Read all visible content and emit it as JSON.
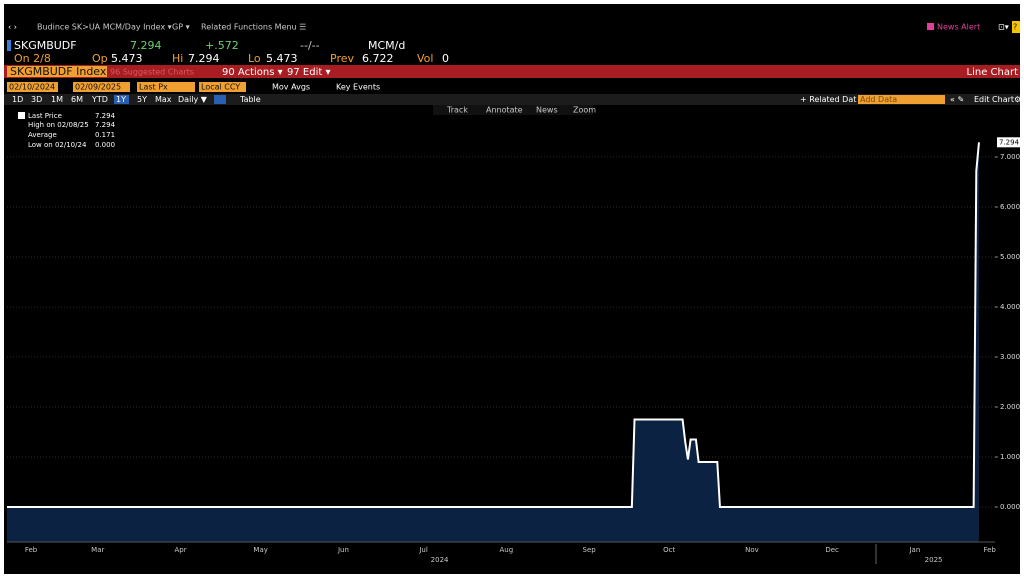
{
  "toolbar": {
    "title": "Budince SK>UA MCM/Day Index ▾",
    "gp": "GP ▾",
    "related": "Related Functions Menu ☰",
    "news_alert": "News Alert"
  },
  "quote": {
    "ticker": "SKGMBUDF",
    "last": "7.294",
    "change": "+.572",
    "range": "--/--",
    "unit": "MCM/d",
    "on": "On 2/8",
    "op_label": "Op",
    "op": "5.473",
    "hi_label": "Hi",
    "hi": "7.294",
    "lo_label": "Lo",
    "lo": "5.473",
    "prev_label": "Prev",
    "prev": "6.722",
    "vol_label": "Vol",
    "vol": "0"
  },
  "menu": {
    "security": "SKGMBUDF Index",
    "suggested": "96 Suggested Charts",
    "actions": "90 Actions ▾",
    "edit": "97 Edit ▾",
    "chart_type": "Line Chart"
  },
  "controls": {
    "start": "02/10/2024",
    "end": "02/09/2025",
    "field": "Last Px",
    "currency": "Local CCY",
    "mov_avgs": "Mov Avgs",
    "key_events": "Key Events",
    "periods": [
      "1D",
      "3D",
      "1M",
      "6M",
      "YTD",
      "1Y",
      "5Y",
      "Max"
    ],
    "frequency": "Daily ▼",
    "table": "Table",
    "related_data": "+ Related Dat",
    "add_data": "Add Data",
    "edit_chart": "Edit Chart"
  },
  "chart_tools": [
    "Track",
    "Annotate",
    "News",
    "Zoom"
  ],
  "legend": {
    "last_value": "7.294",
    "high_label": "High on 02/08/25",
    "high_value": "7.294",
    "average_label": "Average",
    "average_value": "0.171",
    "low_label": "Low on 02/10/24",
    "low_value": "0.000"
  },
  "chart_data": {
    "type": "line",
    "x": [
      "2024-02-10",
      "2024-10-01",
      "2024-10-02",
      "2024-10-20",
      "2024-10-21",
      "2024-10-22",
      "2024-10-23",
      "2024-10-25",
      "2024-10-26",
      "2024-11-02",
      "2024-11-03",
      "2025-02-06",
      "2025-02-07",
      "2025-02-08"
    ],
    "series": [
      {
        "name": "Last Price",
        "color": "#ffffff",
        "fill": "#0c2242",
        "values": [
          0,
          0,
          1.75,
          1.75,
          1.3,
          0.95,
          1.35,
          1.35,
          0.9,
          0.9,
          0,
          0,
          6.722,
          7.294
        ]
      }
    ],
    "xlim": [
      "2024-02-10",
      "2025-02-14"
    ],
    "xticks": [
      {
        "value": "2024-02-19",
        "label": "Feb"
      },
      {
        "value": "2024-03-15",
        "label": "Mar"
      },
      {
        "value": "2024-04-15",
        "label": "Apr"
      },
      {
        "value": "2024-05-15",
        "label": "May"
      },
      {
        "value": "2024-06-15",
        "label": "Jun"
      },
      {
        "value": "2024-07-15",
        "label": "Jul"
      },
      {
        "value": "2024-08-15",
        "label": "Aug"
      },
      {
        "value": "2024-09-15",
        "label": "Sep"
      },
      {
        "value": "2024-10-15",
        "label": "Oct"
      },
      {
        "value": "2024-11-15",
        "label": "Nov"
      },
      {
        "value": "2024-12-15",
        "label": "Dec"
      },
      {
        "value": "2025-01-15",
        "label": "Jan"
      },
      {
        "value": "2025-02-12",
        "label": "Feb"
      }
    ],
    "year_labels": [
      {
        "value": "2024-07-21",
        "label": "2024"
      },
      {
        "value": "2025-01-22",
        "label": "2025"
      }
    ],
    "ylim": [
      -0.7,
      8.04
    ],
    "yticks": [
      {
        "value": 0,
        "label": "0.000"
      },
      {
        "value": 1,
        "label": "1.000"
      },
      {
        "value": 2,
        "label": "2.000"
      },
      {
        "value": 3,
        "label": "3.000"
      },
      {
        "value": 4,
        "label": "4.000"
      },
      {
        "value": 5,
        "label": "5.000"
      },
      {
        "value": 6,
        "label": "6.000"
      },
      {
        "value": 7,
        "label": "7.000"
      }
    ],
    "grid": true
  }
}
